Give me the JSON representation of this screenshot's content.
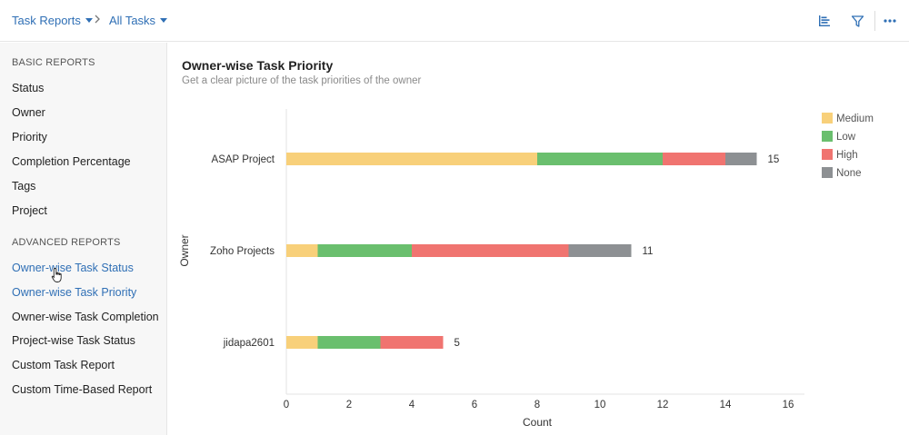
{
  "breadcrumb": {
    "first": "Task Reports",
    "second": "All Tasks"
  },
  "toolbar": {
    "icons": [
      "chart-view-icon",
      "filter-icon",
      "more-icon"
    ]
  },
  "sidebar": {
    "basic_heading": "BASIC REPORTS",
    "basic_items": [
      "Status",
      "Owner",
      "Priority",
      "Completion Percentage",
      "Tags",
      "Project"
    ],
    "advanced_heading": "ADVANCED REPORTS",
    "advanced_items": [
      "Owner-wise Task Status",
      "Owner-wise Task Priority",
      "Owner-wise Task Completion",
      "Project-wise Task Status",
      "Custom Task Report",
      "Custom Time-Based Report"
    ]
  },
  "report": {
    "title": "Owner-wise Task Priority",
    "subtitle": "Get a clear picture of the task priorities of the owner"
  },
  "colors": {
    "accent": "#2f6fb5",
    "medium": "#f8d07a",
    "low": "#6abf6e",
    "high": "#f07470",
    "none": "#8d9093"
  },
  "chart_data": {
    "type": "bar",
    "orientation": "horizontal",
    "stacked": true,
    "categories": [
      "ASAP Project",
      "Zoho Projects",
      "jidapa2601"
    ],
    "series": [
      {
        "name": "Medium",
        "values": [
          8,
          1,
          1
        ]
      },
      {
        "name": "Low",
        "values": [
          4,
          3,
          2
        ]
      },
      {
        "name": "High",
        "values": [
          2,
          5,
          2
        ]
      },
      {
        "name": "None",
        "values": [
          1,
          2,
          0
        ]
      }
    ],
    "totals": [
      15,
      11,
      5
    ],
    "xlabel": "Count",
    "ylabel": "Owner",
    "xlim": [
      0,
      16
    ],
    "xticks": [
      0,
      2,
      4,
      6,
      8,
      10,
      12,
      14,
      16
    ],
    "legend_position": "top-right",
    "grid": false
  }
}
